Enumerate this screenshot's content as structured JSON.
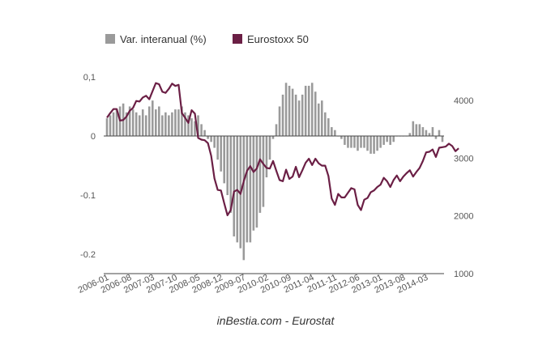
{
  "chart_data": {
    "type": "bar+line",
    "title": "",
    "source": "inBestia.com - Eurostat",
    "legend": {
      "placement": "top",
      "entries": [
        {
          "name": "Var. interanual (%)",
          "color": "#9a9a9a",
          "kind": "bar"
        },
        {
          "name": "Eurostoxx 50",
          "color": "#6b1f45",
          "kind": "line"
        }
      ]
    },
    "x_tick_labels": [
      "2006-01",
      "2006-08",
      "2007-03",
      "2007-10",
      "2008-05",
      "2008-12",
      "2009-07",
      "2010-02",
      "2010-09",
      "2011-04",
      "2011-11",
      "2012-06",
      "2013-01",
      "2013-08",
      "2014-03"
    ],
    "y_left": {
      "ticks": [
        0.1,
        0,
        -0.1,
        -0.2
      ],
      "tick_labels": [
        "0,1",
        "0",
        "-0.1",
        "-0.2"
      ],
      "range": [
        -0.22,
        0.12
      ]
    },
    "y_right": {
      "ticks": [
        4000,
        3000,
        2000,
        1000
      ],
      "tick_labels": [
        "4000",
        "3000",
        "2000",
        "1000"
      ],
      "range": [
        1000,
        4700
      ]
    },
    "start_month": "2006-01",
    "series": [
      {
        "name": "Var. interanual (%)",
        "axis": "left",
        "values": [
          0.03,
          0.035,
          0.04,
          0.045,
          0.05,
          0.055,
          0.04,
          0.05,
          0.045,
          0.04,
          0.035,
          0.045,
          0.035,
          0.05,
          0.06,
          0.045,
          0.05,
          0.035,
          0.04,
          0.035,
          0.04,
          0.045,
          0.045,
          0.05,
          0.04,
          0.035,
          0.03,
          0.025,
          0.035,
          0.02,
          0.01,
          -0.005,
          -0.01,
          -0.02,
          -0.04,
          -0.06,
          -0.08,
          -0.1,
          -0.13,
          -0.17,
          -0.18,
          -0.19,
          -0.21,
          -0.18,
          -0.18,
          -0.16,
          -0.155,
          -0.13,
          -0.12,
          -0.07,
          -0.04,
          -0.005,
          0.02,
          0.05,
          0.07,
          0.09,
          0.085,
          0.08,
          0.07,
          0.06,
          0.07,
          0.085,
          0.085,
          0.09,
          0.075,
          0.055,
          0.06,
          0.04,
          0.03,
          0.015,
          0.01,
          0,
          -0.005,
          -0.015,
          -0.02,
          -0.02,
          -0.02,
          -0.025,
          -0.02,
          -0.02,
          -0.025,
          -0.03,
          -0.03,
          -0.025,
          -0.02,
          -0.015,
          -0.01,
          -0.015,
          -0.01,
          0,
          0,
          0,
          0,
          0.005,
          0.025,
          0.02,
          0.02,
          0.015,
          0.01,
          0.005,
          0.015,
          -0.005,
          0.01,
          -0.01
        ]
      },
      {
        "name": "Eurostoxx 50",
        "axis": "right",
        "values": [
          3700,
          3780,
          3850,
          3850,
          3650,
          3660,
          3720,
          3820,
          3870,
          3990,
          3980,
          4050,
          4080,
          4020,
          4160,
          4300,
          4280,
          4150,
          4130,
          4200,
          4290,
          4250,
          4270,
          3780,
          3700,
          3610,
          3830,
          3770,
          3350,
          3320,
          3310,
          3260,
          3040,
          2650,
          2450,
          2440,
          2220,
          2010,
          2100,
          2420,
          2450,
          2380,
          2600,
          2780,
          2860,
          2760,
          2820,
          2980,
          2900,
          2830,
          2820,
          2950,
          2780,
          2620,
          2600,
          2800,
          2640,
          2680,
          2850,
          2670,
          2790,
          2920,
          2990,
          2880,
          2990,
          2910,
          2870,
          2870,
          2690,
          2300,
          2190,
          2380,
          2320,
          2320,
          2400,
          2480,
          2460,
          2190,
          2100,
          2280,
          2310,
          2410,
          2440,
          2500,
          2540,
          2660,
          2600,
          2500,
          2620,
          2700,
          2600,
          2680,
          2740,
          2790,
          2680,
          2760,
          2830,
          2950,
          3100,
          3110,
          3150,
          3020,
          3180,
          3190,
          3200,
          3250,
          3210,
          3120,
          3170
        ]
      }
    ]
  }
}
